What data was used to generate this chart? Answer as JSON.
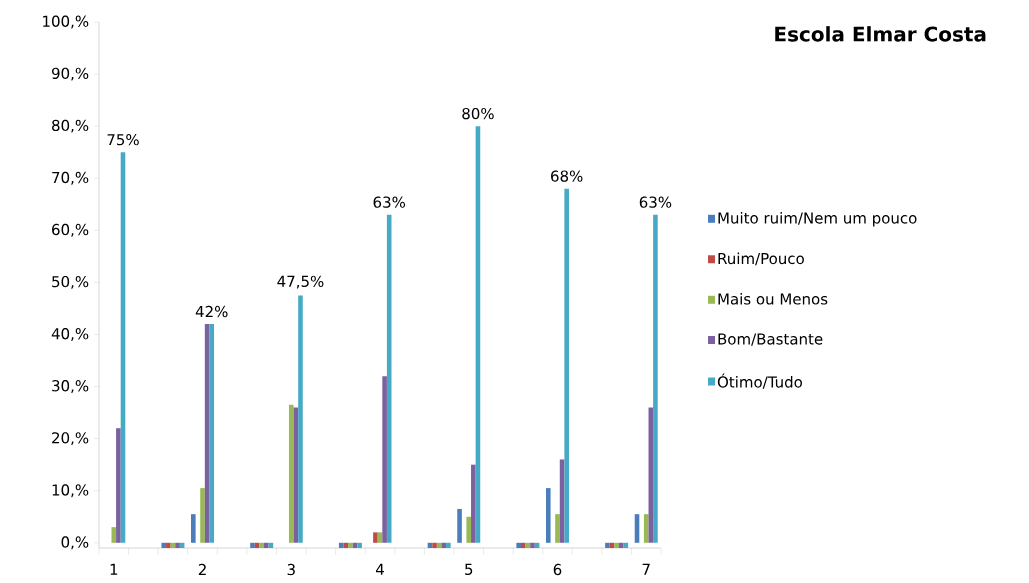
{
  "chart_data": {
    "type": "bar",
    "title": "**Escola Elmar Costa**",
    "categories": [
      "1",
      null,
      null,
      "2",
      null,
      null,
      "3",
      null,
      null,
      "4",
      null,
      null,
      "5",
      null,
      null,
      "6",
      null,
      null,
      "7"
    ],
    "series": [
      {
        "name": "Muito ruim/Nem um pouco",
        "color": "#4a7ebb",
        "values": [
          null,
          null,
          -1,
          5.5,
          null,
          -1,
          null,
          null,
          -1,
          null,
          null,
          -1,
          6.5,
          null,
          -1,
          10.5,
          null,
          -1,
          5.5
        ]
      },
      {
        "name": "Ruim/Pouco",
        "color": "#be4b48",
        "values": [
          null,
          null,
          -1,
          null,
          null,
          -1,
          null,
          null,
          -1,
          2,
          null,
          -1,
          null,
          null,
          -1,
          null,
          null,
          -1,
          null
        ]
      },
      {
        "name": "Mais ou Menos",
        "color": "#98b954",
        "values": [
          3,
          null,
          -1,
          10.5,
          null,
          -1,
          26.5,
          null,
          -1,
          2,
          null,
          -1,
          5,
          null,
          -1,
          5.5,
          null,
          -1,
          5.5
        ]
      },
      {
        "name": "Bom/Bastante",
        "color": "#7d60a0",
        "values": [
          22,
          null,
          -1,
          42,
          null,
          -1,
          26,
          null,
          -1,
          32,
          null,
          -1,
          15,
          null,
          -1,
          16,
          null,
          -1,
          26
        ]
      },
      {
        "name": "Ótimo/Tudo",
        "color": "#46aac5",
        "values": [
          75,
          null,
          -1,
          42,
          null,
          -1,
          47.5,
          null,
          -1,
          63,
          null,
          -1,
          80,
          null,
          -1,
          68,
          null,
          -1,
          63
        ],
        "value_labels": [
          "75%",
          null,
          null,
          "42%",
          null,
          null,
          "47,5%",
          null,
          null,
          "63%",
          null,
          null,
          "80%",
          null,
          null,
          "68%",
          null,
          null,
          "63%"
        ]
      }
    ],
    "ylim": [
      -1,
      100
    ],
    "yticks": [
      {
        "value": 0,
        "label": "0,%"
      },
      {
        "value": 10,
        "label": "10,%"
      },
      {
        "value": 20,
        "label": "20,%"
      },
      {
        "value": 30,
        "label": "30,%"
      },
      {
        "value": 40,
        "label": "40,%"
      },
      {
        "value": 50,
        "label": "50,%"
      },
      {
        "value": 60,
        "label": "60,%"
      },
      {
        "value": 70,
        "label": "70,%"
      },
      {
        "value": 80,
        "label": "80,%"
      },
      {
        "value": 90,
        "label": "90,%"
      },
      {
        "value": 100,
        "label": "100,%"
      }
    ],
    "legend": "right"
  }
}
